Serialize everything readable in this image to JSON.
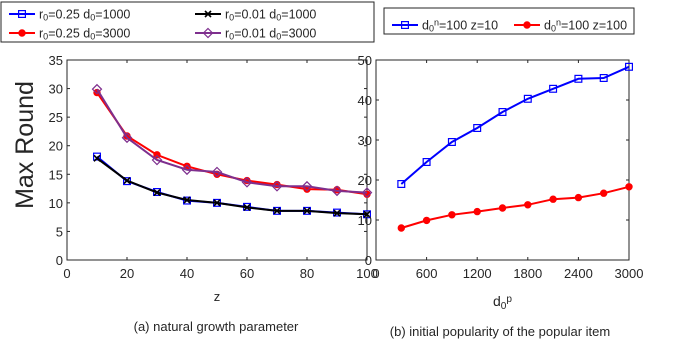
{
  "shared_ylabel": "Max Round",
  "chart_data": [
    {
      "type": "line",
      "caption": "(a) natural growth parameter",
      "xlabel": "z",
      "ylabel": "Max Round",
      "xlim": [
        0,
        100
      ],
      "ylim": [
        0,
        35
      ],
      "xticks": [
        0,
        20,
        40,
        60,
        80,
        100
      ],
      "yticks": [
        0,
        5,
        10,
        15,
        20,
        25,
        30,
        35
      ],
      "grid": false,
      "legend": {
        "placement": "above",
        "columns": 2
      },
      "x": [
        10,
        20,
        30,
        40,
        50,
        60,
        70,
        80,
        90,
        100
      ],
      "series": [
        {
          "name_parts": [
            [
              "r",
              "normal"
            ],
            [
              "0",
              "sub"
            ],
            [
              "=0.25 d",
              "normal"
            ],
            [
              "0",
              "sub"
            ],
            [
              "=1000",
              "normal"
            ]
          ],
          "color": "#0000ff",
          "marker": "square",
          "values": [
            18.1,
            13.8,
            11.9,
            10.4,
            10.0,
            9.3,
            8.6,
            8.6,
            8.3,
            8.0
          ]
        },
        {
          "name_parts": [
            [
              "r",
              "normal"
            ],
            [
              "0",
              "sub"
            ],
            [
              "=0.01 d",
              "normal"
            ],
            [
              "0",
              "sub"
            ],
            [
              "=1000",
              "normal"
            ]
          ],
          "color": "#000000",
          "marker": "x",
          "values": [
            17.8,
            13.9,
            11.8,
            10.5,
            10.0,
            9.2,
            8.6,
            8.6,
            8.2,
            8.0
          ]
        },
        {
          "name_parts": [
            [
              "r",
              "normal"
            ],
            [
              "0",
              "sub"
            ],
            [
              "=0.25 d",
              "normal"
            ],
            [
              "0",
              "sub"
            ],
            [
              "=3000",
              "normal"
            ]
          ],
          "color": "#ff0000",
          "marker": "circle",
          "values": [
            29.3,
            21.7,
            18.4,
            16.4,
            15.0,
            13.9,
            13.2,
            12.4,
            12.3,
            11.5
          ]
        },
        {
          "name_parts": [
            [
              "r",
              "normal"
            ],
            [
              "0",
              "sub"
            ],
            [
              "=0.01 d",
              "normal"
            ],
            [
              "0",
              "sub"
            ],
            [
              "=3000",
              "normal"
            ]
          ],
          "color": "#7e2f8e",
          "marker": "diamond",
          "values": [
            29.9,
            21.4,
            17.5,
            15.8,
            15.4,
            13.6,
            12.9,
            12.9,
            12.1,
            11.8
          ]
        }
      ]
    },
    {
      "type": "line",
      "caption": "(b) initial popularity of the popular item",
      "xlabel_parts": [
        [
          "d",
          "normal"
        ],
        [
          "0",
          "sub"
        ],
        [
          "p",
          "sup"
        ]
      ],
      "xlim": [
        0,
        3000
      ],
      "ylim": [
        0,
        50
      ],
      "xticks": [
        0,
        600,
        1200,
        1800,
        2400,
        3000
      ],
      "yticks": [
        0,
        10,
        20,
        30,
        40,
        50
      ],
      "grid": false,
      "legend": {
        "placement": "above",
        "columns": 2
      },
      "x": [
        300,
        600,
        900,
        1200,
        1500,
        1800,
        2100,
        2400,
        2700,
        3000
      ],
      "series": [
        {
          "name_parts": [
            [
              "d",
              "normal"
            ],
            [
              "0",
              "sub"
            ],
            [
              "n",
              "sup"
            ],
            [
              "=100 z=10",
              "normal"
            ]
          ],
          "color": "#0000ff",
          "marker": "square",
          "values": [
            19.0,
            24.5,
            29.5,
            33.0,
            37.0,
            40.3,
            42.8,
            45.3,
            45.5,
            48.3
          ]
        },
        {
          "name_parts": [
            [
              "d",
              "normal"
            ],
            [
              "0",
              "sub"
            ],
            [
              "n",
              "sup"
            ],
            [
              "=100 z=100",
              "normal"
            ]
          ],
          "color": "#ff0000",
          "marker": "circle",
          "values": [
            8.0,
            9.9,
            11.3,
            12.1,
            13.0,
            13.8,
            15.2,
            15.6,
            16.7,
            18.3
          ]
        }
      ]
    }
  ]
}
